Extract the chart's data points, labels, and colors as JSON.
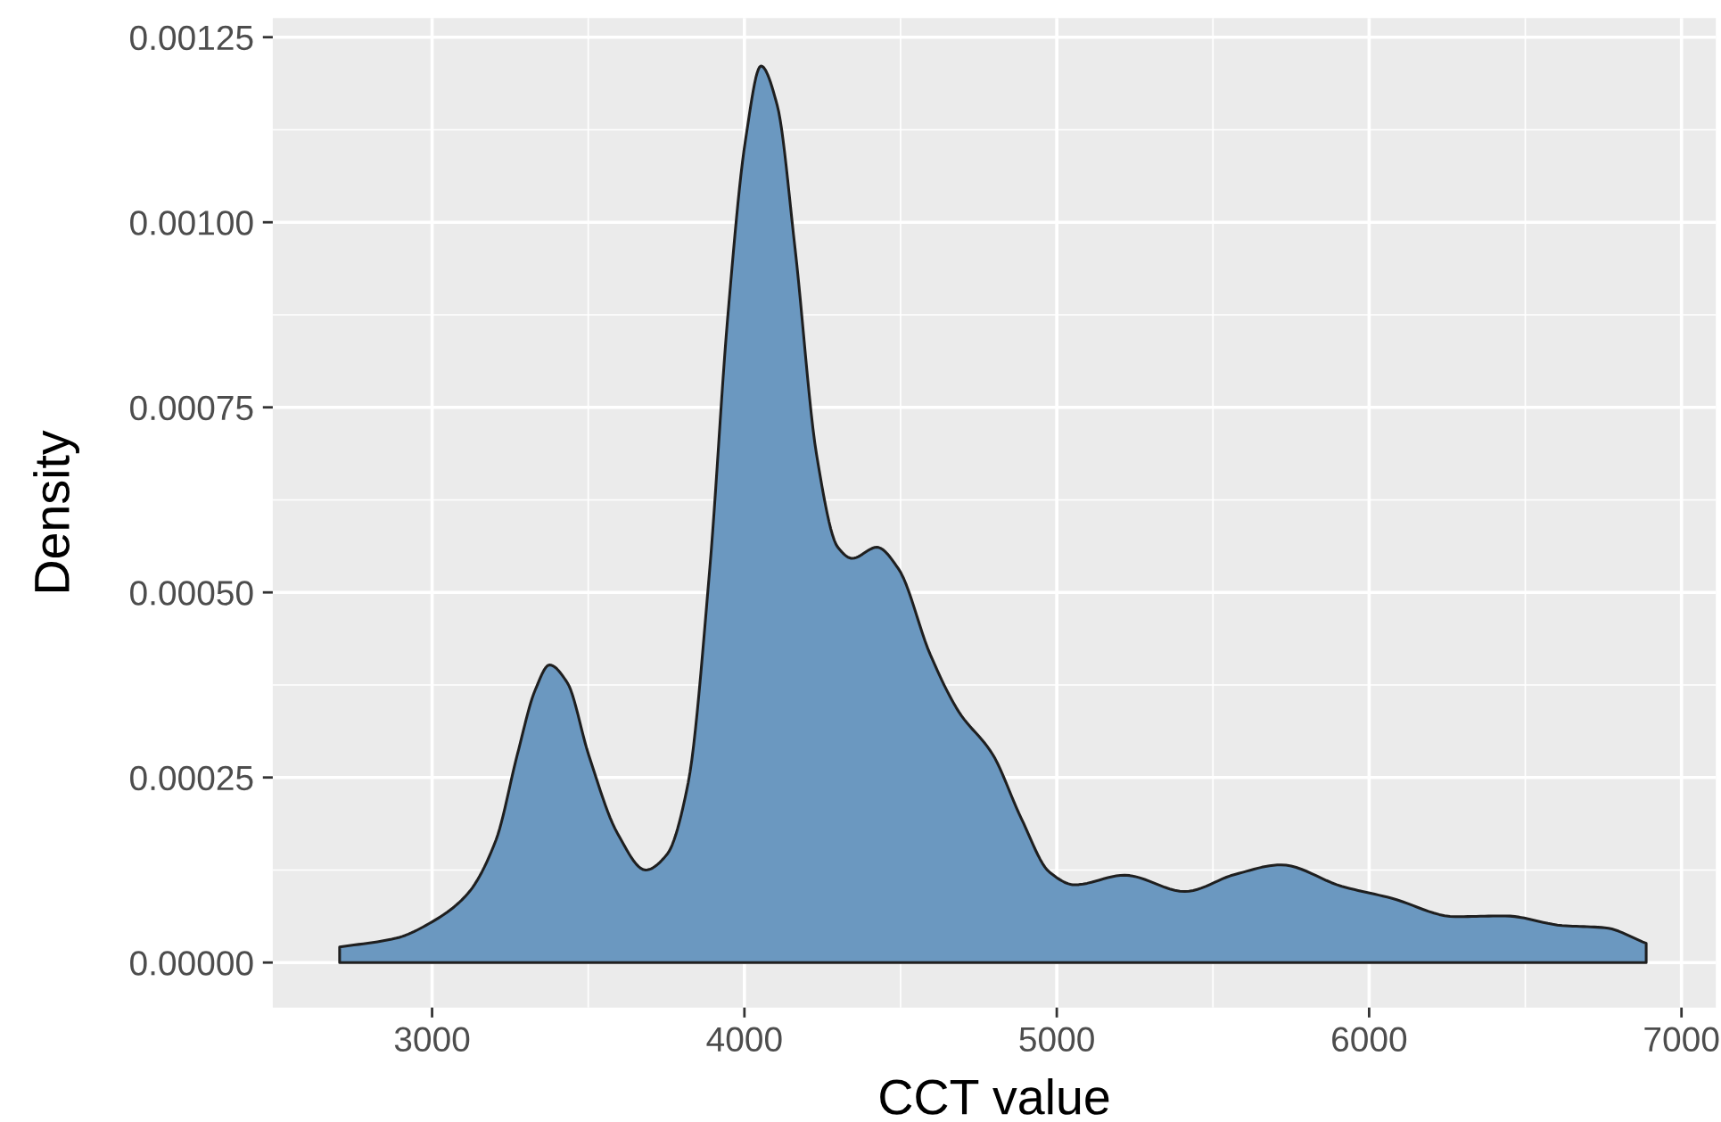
{
  "chart_data": {
    "type": "area",
    "xlabel": "CCT value",
    "ylabel": "Density",
    "series": [
      {
        "color": "#6b98c0",
        "x": [
          2704,
          2886,
          3000,
          3114,
          3205,
          3273,
          3330,
          3376,
          3433,
          3501,
          3593,
          3684,
          3752,
          3820,
          3889,
          3946,
          4003,
          4053,
          4105,
          4162,
          4231,
          4299,
          4345,
          4424,
          4493,
          4595,
          4686,
          4795,
          4886,
          4977,
          5057,
          5217,
          5410,
          5570,
          5718,
          5912,
          6071,
          6276,
          6436,
          6618,
          6755,
          6887
        ],
        "values": [
          2.1e-05,
          3.3e-05,
          5.5e-05,
          9.3e-05,
          0.000166,
          0.000281,
          0.000368,
          0.000402,
          0.000378,
          0.000281,
          0.000175,
          0.000125,
          0.000146,
          0.000243,
          0.000532,
          0.000869,
          0.00111,
          0.001211,
          0.001158,
          0.000965,
          0.000686,
          0.000561,
          0.000546,
          0.000561,
          0.000532,
          0.000416,
          0.000339,
          0.000281,
          0.000195,
          0.000122,
          0.000105,
          0.000118,
          9.6e-05,
          0.000119,
          0.000132,
          0.000103,
          8.7e-05,
          6.2e-05,
          6.3e-05,
          5e-05,
          4.7e-05,
          2.6e-05
        ]
      }
    ],
    "xlim": [
      2490,
      7110
    ],
    "xticks": [
      3000,
      4000,
      5000,
      6000,
      7000
    ],
    "ylim": [
      -6.08e-05,
      0.001276
    ],
    "yticks": [
      {
        "value": 0,
        "label": "0.00000"
      },
      {
        "value": 0.00025,
        "label": "0.00025"
      },
      {
        "value": 0.0005,
        "label": "0.00050"
      },
      {
        "value": 0.00075,
        "label": "0.00075"
      },
      {
        "value": 0.001,
        "label": "0.00100"
      },
      {
        "value": 0.00125,
        "label": "0.00125"
      }
    ],
    "grid": true
  }
}
